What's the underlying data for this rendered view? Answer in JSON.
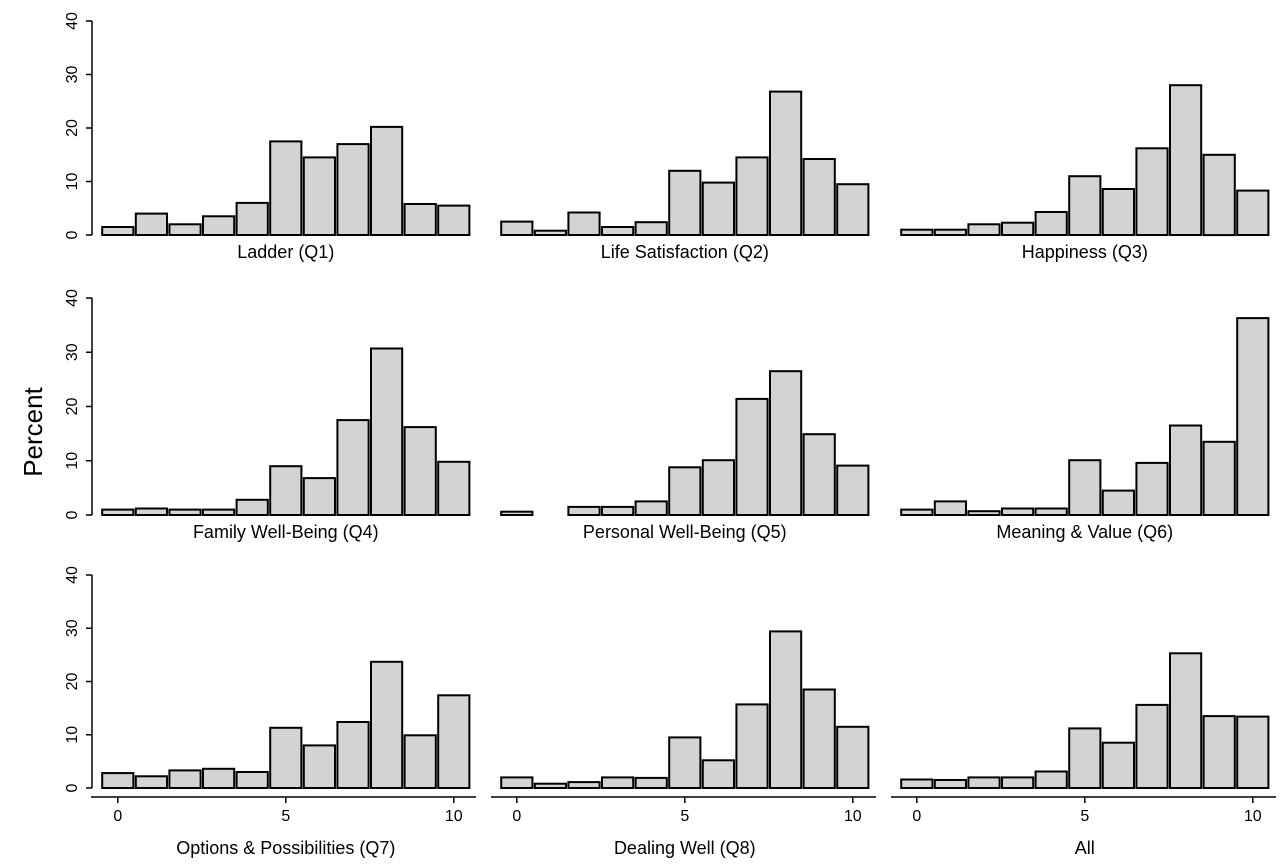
{
  "chart_data": {
    "type": "bar",
    "ylabel": "Percent",
    "ylim": [
      0,
      40
    ],
    "yticks": [
      0,
      10,
      20,
      30,
      40
    ],
    "xlim": [
      -0.5,
      10.5
    ],
    "xticks": [
      0,
      5,
      10
    ],
    "x": [
      0,
      1,
      2,
      3,
      4,
      5,
      6,
      7,
      8,
      9,
      10
    ],
    "bar_color": "#d3d3d3",
    "panels": [
      {
        "title": "Ladder (Q1)",
        "values": [
          1.5,
          4.0,
          2.0,
          3.5,
          6.0,
          17.5,
          14.5,
          17.0,
          20.2,
          5.8,
          5.5
        ]
      },
      {
        "title": "Life Satisfaction (Q2)",
        "values": [
          2.5,
          0.8,
          4.2,
          1.5,
          2.4,
          12.0,
          9.8,
          14.5,
          26.8,
          14.2,
          9.5
        ]
      },
      {
        "title": "Happiness (Q3)",
        "values": [
          1.0,
          1.0,
          2.0,
          2.3,
          4.3,
          11.0,
          8.6,
          16.2,
          28.0,
          15.0,
          8.3
        ]
      },
      {
        "title": "Family Well-Being (Q4)",
        "values": [
          1.0,
          1.2,
          1.0,
          1.0,
          2.8,
          9.0,
          6.8,
          17.5,
          30.7,
          16.2,
          9.8
        ]
      },
      {
        "title": "Personal Well-Being (Q5)",
        "values": [
          0.6,
          0,
          1.5,
          1.5,
          2.5,
          8.8,
          10.1,
          21.4,
          26.5,
          14.9,
          9.1
        ]
      },
      {
        "title": "Meaning & Value (Q6)",
        "values": [
          1.0,
          2.5,
          0.7,
          1.2,
          1.2,
          10.1,
          4.5,
          9.6,
          16.5,
          13.5,
          36.3
        ]
      },
      {
        "title": "Options & Possibilities (Q7)",
        "values": [
          2.8,
          2.2,
          3.3,
          3.6,
          3.0,
          11.3,
          8.0,
          12.4,
          23.7,
          9.9,
          17.4
        ]
      },
      {
        "title": "Dealing Well (Q8)",
        "values": [
          2.0,
          0.8,
          1.1,
          2.0,
          1.9,
          9.5,
          5.2,
          15.7,
          29.4,
          18.5,
          11.5
        ]
      },
      {
        "title": "All",
        "values": [
          1.6,
          1.5,
          2.0,
          2.0,
          3.1,
          11.2,
          8.5,
          15.6,
          25.3,
          13.5,
          13.4
        ]
      }
    ]
  }
}
